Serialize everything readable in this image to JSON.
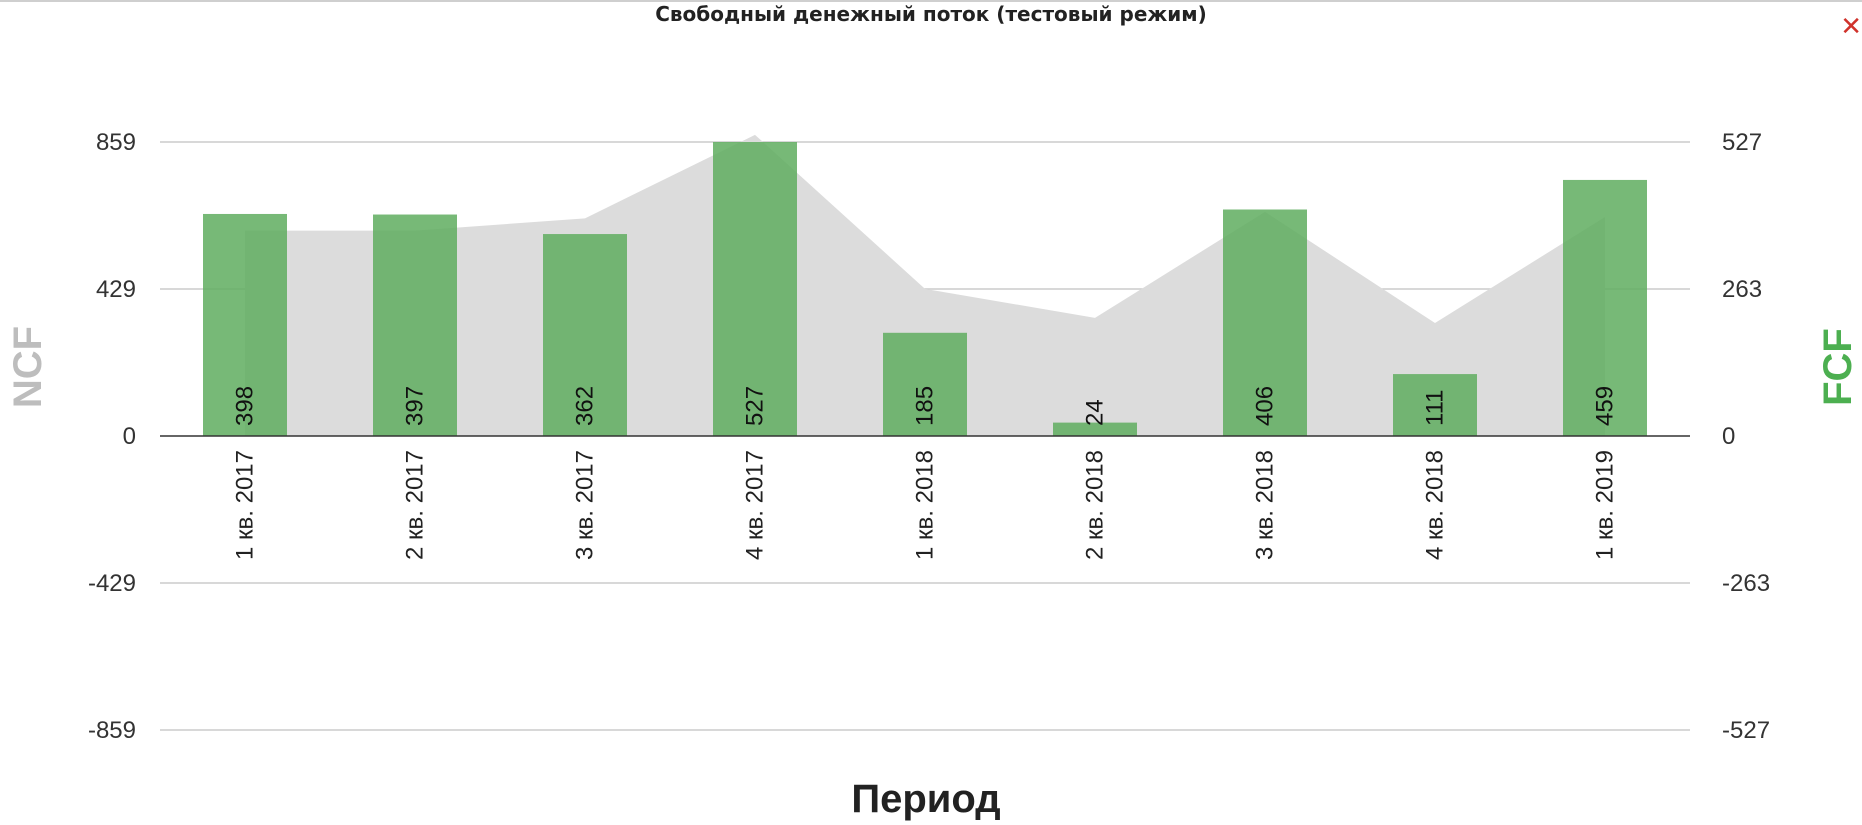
{
  "title": "Свободный денежный поток (тестовый режим)",
  "close_glyph": "✕",
  "colors": {
    "bar": "#5fad5f",
    "area": "#dcdcdc",
    "left_axis": "#bdbdbd",
    "right_axis": "#4caf50",
    "grid": "#cccccc"
  },
  "chart_data": {
    "type": "bar",
    "categories": [
      "1 кв. 2017",
      "2 кв. 2017",
      "3 кв. 2017",
      "4 кв. 2017",
      "1 кв. 2018",
      "2 кв. 2018",
      "3 кв. 2018",
      "4 кв. 2018",
      "1 кв. 2019"
    ],
    "series": [
      {
        "name": "FCF",
        "type": "bar",
        "axis": "right",
        "values": [
          398,
          397,
          362,
          527,
          185,
          24,
          406,
          111,
          459
        ]
      },
      {
        "name": "NCF",
        "type": "area",
        "axis": "left",
        "values": [
          600,
          600,
          636,
          880,
          430,
          345,
          655,
          330,
          640
        ]
      }
    ],
    "ylabel_left": "NCF",
    "ylabel_right": "FCF",
    "xlabel": "Период",
    "ylim_left": [
      -859,
      859
    ],
    "ylim_right": [
      -527,
      527
    ],
    "yticks_left": [
      "859",
      "429",
      "0",
      "-429",
      "-859"
    ],
    "yticks_right": [
      "527",
      "263",
      "0",
      "-263",
      "-527"
    ],
    "grid": true
  }
}
